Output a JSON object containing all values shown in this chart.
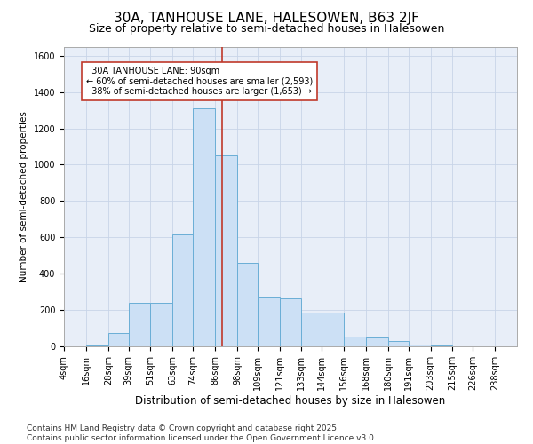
{
  "title": "30A, TANHOUSE LANE, HALESOWEN, B63 2JF",
  "subtitle": "Size of property relative to semi-detached houses in Halesowen",
  "xlabel": "Distribution of semi-detached houses by size in Halesowen",
  "ylabel": "Number of semi-detached properties",
  "footnote": "Contains HM Land Registry data © Crown copyright and database right 2025.\nContains public sector information licensed under the Open Government Licence v3.0.",
  "bin_labels": [
    "4sqm",
    "16sqm",
    "28sqm",
    "39sqm",
    "51sqm",
    "63sqm",
    "74sqm",
    "86sqm",
    "98sqm",
    "109sqm",
    "121sqm",
    "133sqm",
    "144sqm",
    "156sqm",
    "168sqm",
    "180sqm",
    "191sqm",
    "203sqm",
    "215sqm",
    "226sqm",
    "238sqm"
  ],
  "bin_edges": [
    4,
    16,
    28,
    39,
    51,
    63,
    74,
    86,
    98,
    109,
    121,
    133,
    144,
    156,
    168,
    180,
    191,
    203,
    215,
    226,
    238,
    250
  ],
  "bar_heights": [
    1,
    3,
    75,
    240,
    240,
    615,
    1310,
    1050,
    460,
    270,
    265,
    185,
    185,
    55,
    50,
    28,
    10,
    5,
    2,
    1,
    0
  ],
  "bar_face_color": "#cce0f5",
  "bar_edge_color": "#6aaed6",
  "property_size": 90,
  "property_label": "30A TANHOUSE LANE: 90sqm",
  "pct_smaller": 60,
  "pct_smaller_count": 2593,
  "pct_larger": 38,
  "pct_larger_count": 1653,
  "vline_color": "#c0392b",
  "annotation_box_edge_color": "#c0392b",
  "ylim": [
    0,
    1650
  ],
  "yticks": [
    0,
    200,
    400,
    600,
    800,
    1000,
    1200,
    1400,
    1600
  ],
  "grid_color": "#c8d4e8",
  "bg_color": "#e8eef8",
  "title_fontsize": 11,
  "subtitle_fontsize": 9,
  "ylabel_fontsize": 7.5,
  "xlabel_fontsize": 8.5,
  "tick_fontsize": 7,
  "footnote_fontsize": 6.5,
  "annotation_fontsize": 7
}
